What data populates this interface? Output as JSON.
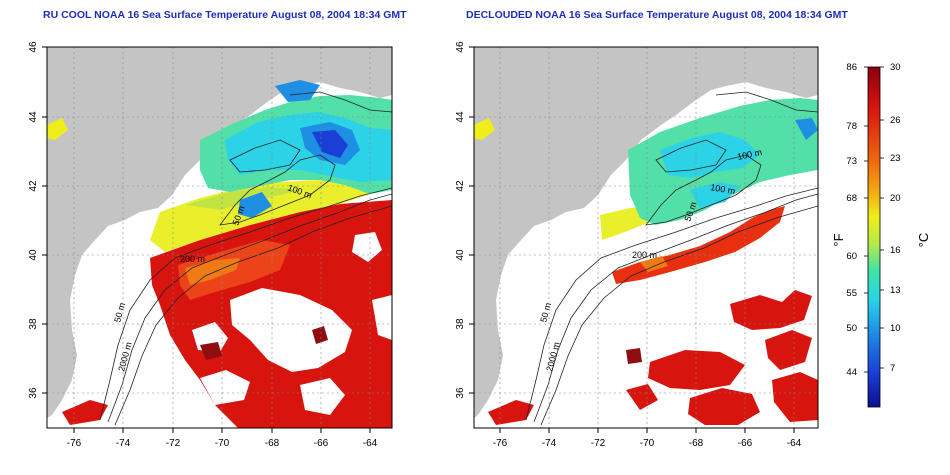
{
  "panels": [
    {
      "title": "RU COOL NOAA 16 Sea Surface Temperature August 08, 2004 18:34 GMT",
      "isobaths": [
        "50 m",
        "100 m",
        "200 m",
        "50 m",
        "2000 m"
      ]
    },
    {
      "title": "DECLOUDED NOAA 16 Sea Surface Temperature August 08, 2004 18:34 GMT",
      "isobaths": [
        "100 m",
        "50 m",
        "100 m",
        "200 m",
        "50 m",
        "2000 m"
      ]
    }
  ],
  "axes": {
    "lon_ticks": [
      "-76",
      "-74",
      "-72",
      "-70",
      "-68",
      "-66",
      "-64"
    ],
    "lat_ticks": [
      "36",
      "38",
      "40",
      "42",
      "44",
      "46"
    ]
  },
  "colorbar": {
    "fahrenheit_unit": "°F",
    "celsius_unit": "°C",
    "fahrenheit_ticks": [
      "86",
      "78",
      "73",
      "68",
      "60",
      "55",
      "50",
      "44"
    ],
    "celsius_ticks": [
      "30",
      "26",
      "23",
      "20",
      "16",
      "13",
      "10",
      "7"
    ]
  },
  "colors": {
    "land": "#c4c4c4",
    "title": "#1f2db8",
    "warm": "#d8140f",
    "cold": "#1a3fd6"
  }
}
